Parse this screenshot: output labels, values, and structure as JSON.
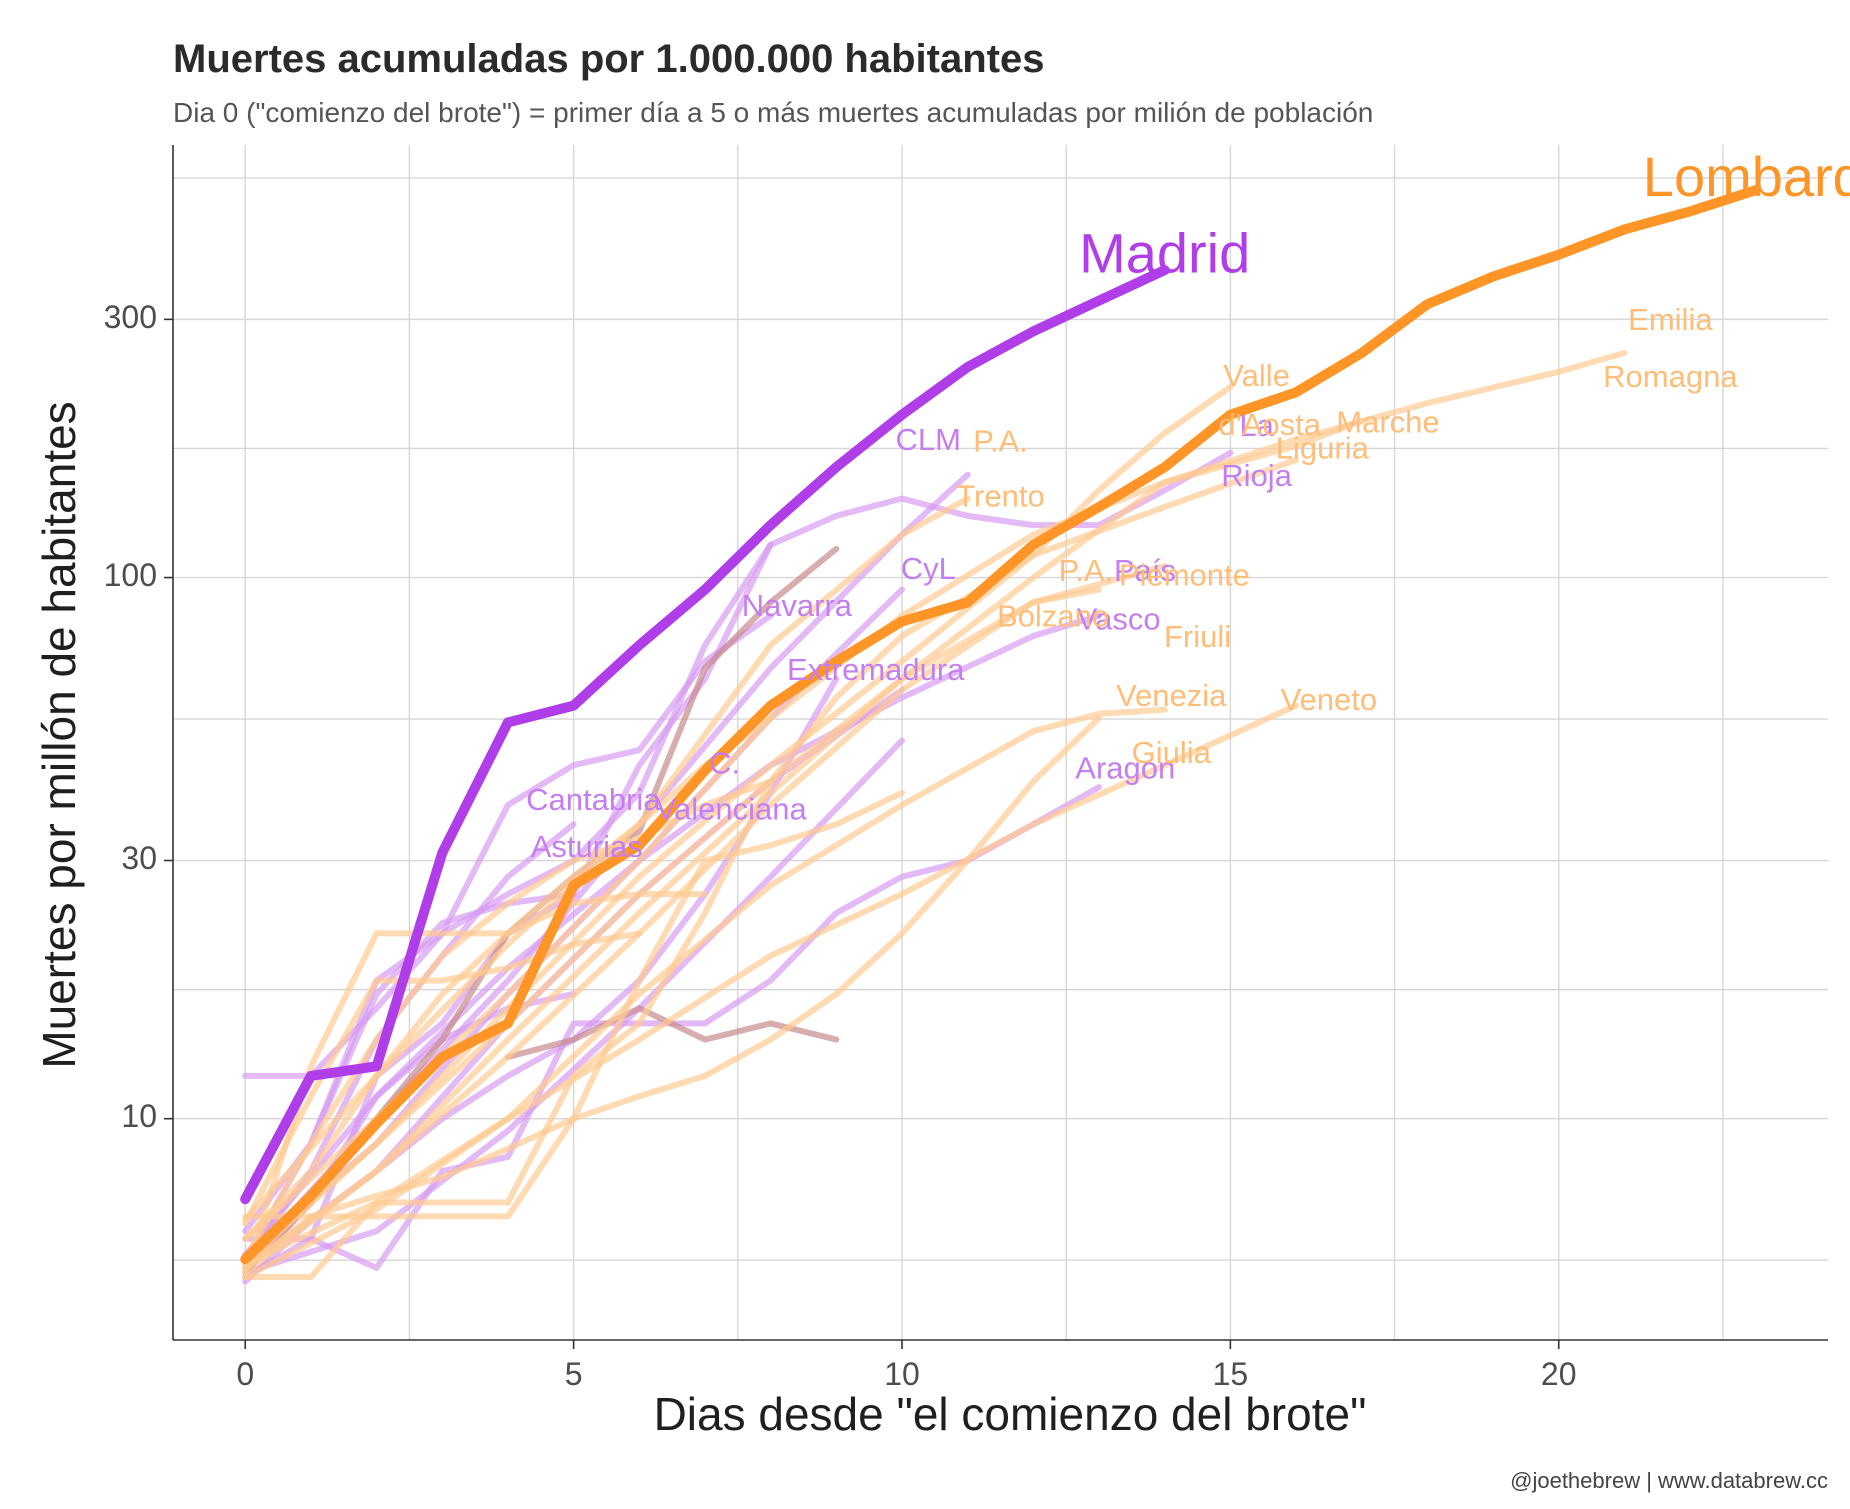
{
  "chart_data": {
    "type": "line",
    "title": "Muertes acumuladas por 1.000.000 habitantes",
    "subtitle": "Dia 0 (\"comienzo del brote\") = primer día a 5 o más muertes acumuladas por milión de población",
    "xlabel": "Dias desde \"el comienzo del brote\"",
    "ylabel": "Muertes por millón de habitantes",
    "caption": "@joethebrew | www.databrew.cc",
    "x_scale": "linear",
    "y_scale": "log",
    "xlim": [
      -1.1,
      24.1
    ],
    "ylim": [
      3.9,
      630
    ],
    "x_ticks": [
      0,
      5,
      10,
      15,
      20
    ],
    "x_tick_labels": [
      "0",
      "5",
      "10",
      "15",
      "20"
    ],
    "y_ticks": [
      10,
      30,
      100,
      300
    ],
    "y_tick_labels": [
      "10",
      "30",
      "100",
      "300"
    ],
    "grid": true,
    "legend": "none",
    "colors": {
      "spain": "#b03ee8",
      "italy": "#ff9527",
      "spain_faded": "#d79bf2",
      "italy_faded": "#ffcb92",
      "brown_faded": "#c88a8a"
    },
    "series": [
      {
        "name": "Madrid",
        "group": "spain",
        "highlight": true,
        "x": [
          0,
          1,
          2,
          3,
          4,
          5,
          6,
          7,
          8,
          9,
          10,
          11,
          12,
          13,
          14
        ],
        "y": [
          7.1,
          12,
          12.5,
          31,
          54,
          58,
          75,
          95,
          125,
          160,
          200,
          245,
          285,
          325,
          370
        ]
      },
      {
        "name": "Lombardía",
        "group": "italy",
        "highlight": true,
        "x": [
          0,
          1,
          2,
          3,
          4,
          5,
          6,
          7,
          8,
          9,
          10,
          11,
          12,
          13,
          14,
          15,
          16,
          17,
          18,
          19,
          20,
          21,
          22,
          23
        ],
        "y": [
          5.5,
          7.2,
          9.8,
          13,
          15,
          27,
          32,
          44,
          58,
          70,
          83,
          90,
          115,
          135,
          160,
          200,
          220,
          260,
          320,
          360,
          395,
          440,
          475,
          520
        ]
      },
      {
        "name": "CLM",
        "group": "spain",
        "x": [
          0,
          2,
          4,
          6,
          8,
          10,
          11
        ],
        "y": [
          5.4,
          10,
          18,
          35,
          68,
          120,
          155
        ]
      },
      {
        "name": "CyL",
        "group": "spain",
        "x": [
          0,
          2,
          4,
          6,
          8,
          10
        ],
        "y": [
          5.6,
          9,
          17,
          30,
          55,
          95
        ]
      },
      {
        "name": "Navarra",
        "group": "spain",
        "x": [
          0,
          1,
          2,
          3,
          4,
          5,
          6,
          7,
          8
        ],
        "y": [
          5.5,
          9,
          18,
          22,
          38,
          45,
          48,
          70,
          85
        ]
      },
      {
        "name": "Extremadura",
        "group": "spain",
        "x": [
          0,
          2,
          4,
          6,
          8,
          10
        ],
        "y": [
          5.3,
          8,
          15,
          26,
          42,
          62
        ]
      },
      {
        "name": "País Vasco",
        "group": "spain",
        "x": [
          0,
          2,
          4,
          6,
          8,
          10,
          12,
          13
        ],
        "y": [
          5.6,
          11,
          19,
          30,
          45,
          60,
          78,
          85
        ]
      },
      {
        "name": "La Rioja",
        "group": "spain",
        "x": [
          0,
          1,
          2,
          3,
          4,
          5,
          6,
          7,
          8,
          9,
          10,
          11,
          12,
          13,
          14,
          15
        ],
        "y": [
          12,
          12,
          16,
          22,
          26,
          30,
          40,
          75,
          115,
          130,
          140,
          130,
          125,
          125,
          145,
          170
        ]
      },
      {
        "name": "C. Valenciana",
        "group": "spain",
        "x": [
          0,
          2,
          4,
          6,
          8,
          10
        ],
        "y": [
          5.2,
          6.2,
          9.5,
          16,
          28,
          50
        ]
      },
      {
        "name": "Cantabria",
        "group": "spain",
        "x": [
          0,
          1,
          2,
          3,
          4,
          5
        ],
        "y": [
          5.5,
          8,
          14,
          20,
          28,
          35
        ]
      },
      {
        "name": "Asturias",
        "group": "spain",
        "x": [
          0,
          1,
          2,
          3,
          4,
          5
        ],
        "y": [
          5.2,
          7,
          11,
          14,
          16,
          17
        ]
      },
      {
        "name": "Aragón",
        "group": "spain",
        "x": [
          0,
          1,
          2,
          3,
          4,
          5,
          6,
          7,
          8,
          9,
          10,
          11,
          12,
          13
        ],
        "y": [
          6,
          6,
          5.3,
          8,
          8.5,
          15,
          15,
          15,
          18,
          24,
          28,
          30,
          35,
          41
        ]
      },
      {
        "name": "",
        "group": "spain",
        "x": [
          0,
          1,
          2,
          3,
          4,
          5,
          6,
          7,
          8
        ],
        "y": [
          5.1,
          6,
          12,
          15,
          22,
          26,
          45,
          65,
          115
        ]
      },
      {
        "name": "",
        "group": "spain",
        "x": [
          0,
          1,
          2,
          3,
          4,
          5
        ],
        "y": [
          6.2,
          9,
          17,
          23,
          25,
          26
        ]
      },
      {
        "name": "",
        "group": "spain",
        "x": [
          0,
          1,
          2,
          3,
          4,
          5,
          6,
          7,
          8,
          9
        ],
        "y": [
          5,
          6.5,
          8,
          10,
          12,
          14,
          18,
          26,
          40,
          65
        ]
      },
      {
        "name": "",
        "group": "brown",
        "x": [
          0,
          1,
          2,
          3,
          4,
          5,
          6,
          7,
          8,
          9
        ],
        "y": [
          5.2,
          7,
          10,
          14,
          22,
          28,
          34,
          68,
          90,
          113
        ]
      },
      {
        "name": "",
        "group": "brown",
        "x": [
          4,
          5,
          6,
          7,
          8,
          9
        ],
        "y": [
          13,
          14,
          16,
          14,
          15,
          14
        ]
      },
      {
        "name": "P.A. Trento",
        "group": "italy",
        "x": [
          0,
          2,
          4,
          6,
          8,
          10,
          11
        ],
        "y": [
          6.5,
          12,
          21,
          35,
          75,
          120,
          140
        ]
      },
      {
        "name": "Valle d'Aosta",
        "group": "italy",
        "x": [
          0,
          1,
          2,
          3,
          4,
          5,
          6,
          7,
          8,
          9,
          10,
          11,
          12,
          13,
          14,
          15
        ],
        "y": [
          5.1,
          5.1,
          7,
          7,
          7,
          12,
          15,
          24,
          42,
          60,
          78,
          92,
          110,
          145,
          185,
          225
        ]
      },
      {
        "name": "Marche",
        "group": "italy",
        "x": [
          0,
          2,
          4,
          6,
          8,
          10,
          12,
          14,
          16,
          17
        ],
        "y": [
          6,
          10,
          17,
          30,
          55,
          85,
          120,
          150,
          175,
          195
        ]
      },
      {
        "name": "Liguria",
        "group": "italy",
        "x": [
          0,
          2,
          4,
          6,
          8,
          10,
          12,
          14,
          16
        ],
        "y": [
          5.4,
          9,
          16,
          28,
          45,
          70,
          110,
          135,
          165
        ]
      },
      {
        "name": "Emilia Romagna",
        "group": "italy",
        "x": [
          0,
          2,
          4,
          6,
          8,
          10,
          12,
          14,
          16,
          18,
          20,
          21
        ],
        "y": [
          5.5,
          9,
          15,
          26,
          42,
          65,
          100,
          150,
          180,
          210,
          240,
          260
        ]
      },
      {
        "name": "P.A. Bolzano",
        "group": "italy",
        "x": [
          0,
          2,
          4,
          6,
          8,
          10,
          12,
          13
        ],
        "y": [
          5.3,
          8,
          14,
          24,
          40,
          65,
          90,
          95
        ]
      },
      {
        "name": "Piemonte",
        "group": "italy",
        "x": [
          0,
          2,
          4,
          6,
          8,
          10,
          12,
          14
        ],
        "y": [
          5.2,
          8,
          13,
          22,
          38,
          62,
          90,
          105
        ]
      },
      {
        "name": "Friuli Venezia Giulia",
        "group": "italy",
        "x": [
          0,
          2,
          4,
          6,
          8,
          10,
          12,
          13,
          14
        ],
        "y": [
          5.4,
          7,
          10,
          17,
          27,
          38,
          52,
          56,
          57
        ]
      },
      {
        "name": "Veneto",
        "group": "italy",
        "x": [
          0,
          2,
          4,
          6,
          8,
          10,
          12,
          14,
          16
        ],
        "y": [
          5.1,
          6.8,
          10,
          14,
          20,
          26,
          35,
          45,
          58
        ]
      },
      {
        "name": "",
        "group": "italy",
        "x": [
          0,
          1,
          2,
          3,
          4,
          5,
          6,
          7
        ],
        "y": [
          5.2,
          12.5,
          22,
          22,
          22,
          25,
          26,
          26
        ]
      },
      {
        "name": "",
        "group": "italy",
        "x": [
          0,
          1,
          2,
          3,
          4,
          5,
          6
        ],
        "y": [
          6.4,
          11,
          18,
          18,
          19,
          21,
          22
        ]
      },
      {
        "name": "",
        "group": "italy",
        "x": [
          0,
          1,
          2,
          3,
          4,
          5,
          6,
          7,
          8
        ],
        "y": [
          6,
          8,
          12,
          17,
          22,
          28,
          35,
          45,
          55
        ]
      },
      {
        "name": "",
        "group": "italy",
        "x": [
          0,
          1,
          2,
          3,
          4,
          5,
          6,
          7,
          8
        ],
        "y": [
          5.5,
          9,
          14,
          20,
          25,
          30,
          33,
          38,
          42
        ]
      },
      {
        "name": "",
        "group": "italy",
        "x": [
          0,
          1,
          2,
          3,
          4,
          5,
          6,
          7,
          8,
          9,
          10,
          11,
          12,
          13
        ],
        "y": [
          5.3,
          6.6,
          7.2,
          7.8,
          8.8,
          10,
          11,
          12,
          14,
          17,
          22,
          30,
          42,
          55
        ]
      },
      {
        "name": "",
        "group": "italy",
        "x": [
          0,
          1,
          2,
          3,
          4,
          5,
          6,
          7,
          8,
          9,
          10
        ],
        "y": [
          6.6,
          6.6,
          6.6,
          6.6,
          6.6,
          10,
          18,
          30,
          32,
          35,
          40
        ]
      }
    ],
    "labels": [
      {
        "text": "Madrid",
        "group": "spain",
        "x": 14,
        "y": 390,
        "size": "big"
      },
      {
        "text": "Lombardo",
        "group": "italy",
        "x": 23.2,
        "y": 540,
        "size": "big"
      },
      {
        "text": "CLM",
        "group": "spain",
        "x": 10.4,
        "y": 178
      },
      {
        "text": "CyL",
        "group": "spain",
        "x": 10.4,
        "y": 103
      },
      {
        "text": "Navarra",
        "group": "spain",
        "x": 8.4,
        "y": 88
      },
      {
        "text": "Extremadura",
        "group": "spain",
        "x": 9.6,
        "y": 67
      },
      {
        "text": "C.",
        "group": "spain",
        "x": 7.3,
        "y": 45
      },
      {
        "text": "Valenciana",
        "group": "spain",
        "x": 7.4,
        "y": 37
      },
      {
        "text": "Cantabria",
        "group": "spain",
        "x": 5.3,
        "y": 38.5
      },
      {
        "text": "Asturias",
        "group": "spain",
        "x": 5.2,
        "y": 31.5
      },
      {
        "text": "Aragon",
        "group": "spain",
        "x": 13.4,
        "y": 44
      },
      {
        "text": "País",
        "group": "spain",
        "x": 13.7,
        "y": 102
      },
      {
        "text": "Vasco",
        "group": "spain",
        "x": 13.3,
        "y": 83
      },
      {
        "text": "La",
        "group": "spain",
        "x": 15.4,
        "y": 189
      },
      {
        "text": "Rioja",
        "group": "spain",
        "x": 15.4,
        "y": 153
      },
      {
        "text": "P.A.",
        "group": "italy",
        "x": 11.5,
        "y": 177
      },
      {
        "text": "Trento",
        "group": "italy",
        "x": 11.5,
        "y": 140
      },
      {
        "text": "P.A.",
        "group": "italy",
        "x": 12.8,
        "y": 102
      },
      {
        "text": "Bolzano",
        "group": "italy",
        "x": 12.3,
        "y": 84
      },
      {
        "text": "Valle",
        "group": "italy",
        "x": 15.4,
        "y": 234
      },
      {
        "text": "d'Aosta",
        "group": "italy",
        "x": 15.6,
        "y": 190
      },
      {
        "text": "Marche",
        "group": "italy",
        "x": 17.4,
        "y": 192
      },
      {
        "text": "Liguria",
        "group": "italy",
        "x": 16.4,
        "y": 172
      },
      {
        "text": "Emilia",
        "group": "italy",
        "x": 21.7,
        "y": 297
      },
      {
        "text": "Romagna",
        "group": "italy",
        "x": 21.7,
        "y": 233
      },
      {
        "text": "Piemonte",
        "group": "italy",
        "x": 14.3,
        "y": 100
      },
      {
        "text": "Friuli",
        "group": "italy",
        "x": 14.5,
        "y": 77
      },
      {
        "text": "Venezia",
        "group": "italy",
        "x": 14.1,
        "y": 60
      },
      {
        "text": "Veneto",
        "group": "italy",
        "x": 16.5,
        "y": 59
      },
      {
        "text": "Giulia",
        "group": "italy",
        "x": 14.1,
        "y": 47
      }
    ]
  }
}
